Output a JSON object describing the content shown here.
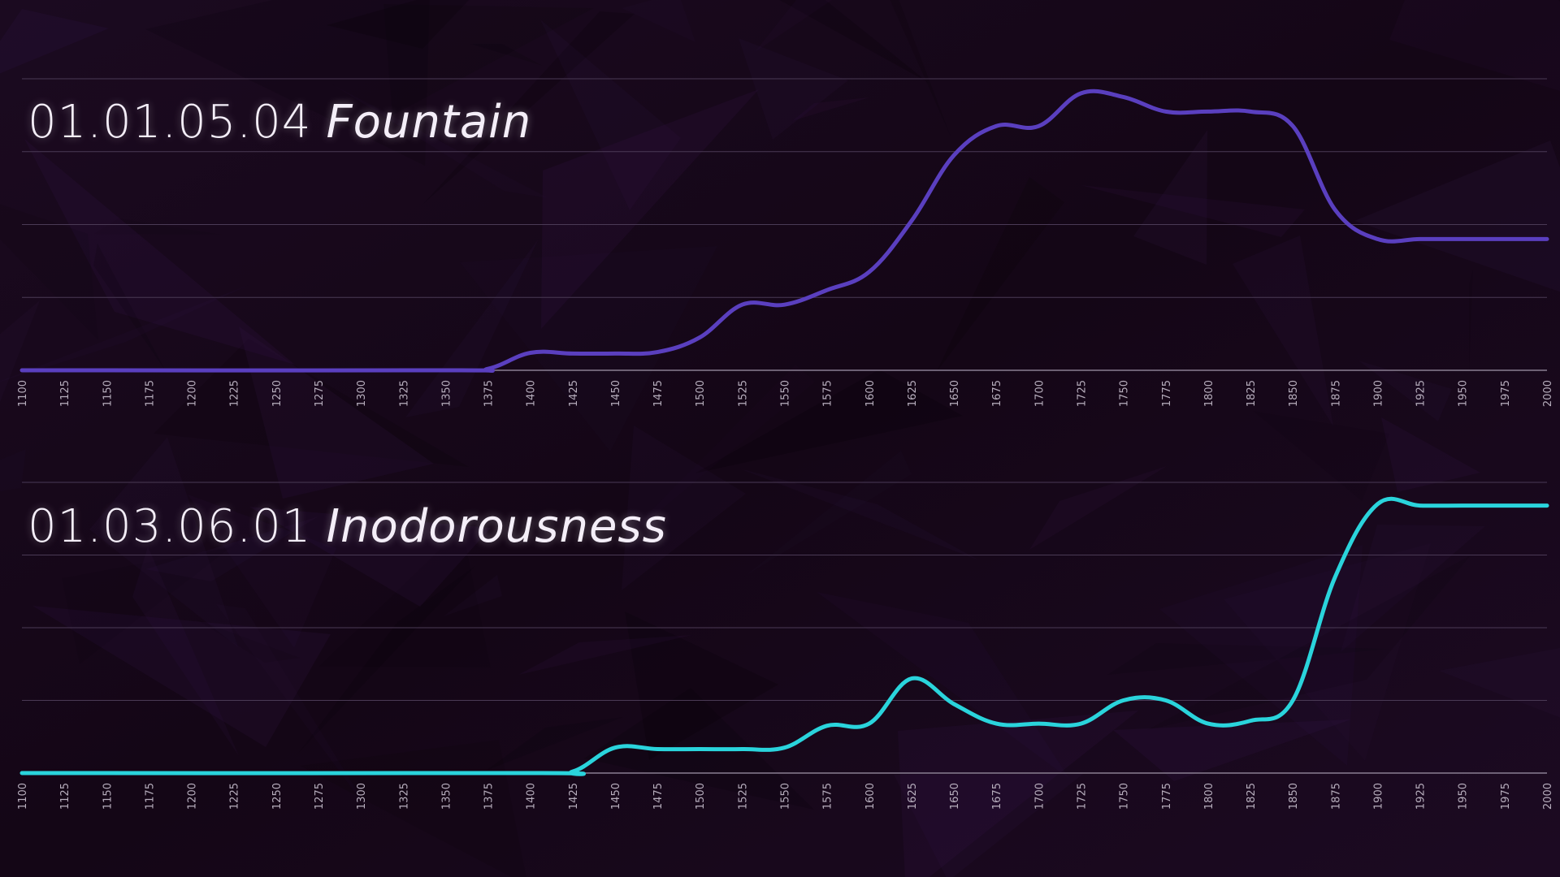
{
  "background_color": "#120512",
  "charts_text": [
    {
      "code": "01.01.05.04",
      "word": "Fountain"
    },
    {
      "code": "01.03.06.01",
      "word": "Inodorousness"
    }
  ],
  "chart_data": [
    {
      "type": "line",
      "title": "01.01.05.04 Fountain",
      "xlabel": "",
      "ylabel": "",
      "xlim": [
        1100,
        2000
      ],
      "ylim": [
        0,
        4
      ],
      "grid": true,
      "x_ticks": [
        1100,
        1125,
        1150,
        1175,
        1200,
        1225,
        1250,
        1275,
        1300,
        1325,
        1350,
        1375,
        1400,
        1425,
        1450,
        1475,
        1500,
        1525,
        1550,
        1575,
        1600,
        1625,
        1650,
        1675,
        1700,
        1725,
        1750,
        1775,
        1800,
        1825,
        1850,
        1875,
        1900,
        1925,
        1950,
        1975,
        2000
      ],
      "series": [
        {
          "color": "#5a3fbf",
          "x": [
            1100,
            1350,
            1375,
            1400,
            1425,
            1450,
            1475,
            1500,
            1525,
            1550,
            1575,
            1600,
            1625,
            1650,
            1675,
            1700,
            1725,
            1750,
            1775,
            1800,
            1825,
            1850,
            1875,
            1900,
            1925,
            1950,
            1975,
            2000
          ],
          "y": [
            0,
            0,
            0.02,
            0.24,
            0.23,
            0.23,
            0.25,
            0.45,
            0.9,
            0.9,
            1.1,
            1.35,
            2.05,
            2.95,
            3.35,
            3.35,
            3.8,
            3.75,
            3.55,
            3.55,
            3.55,
            3.35,
            2.2,
            1.8,
            1.8,
            1.8,
            1.8,
            1.8
          ]
        }
      ]
    },
    {
      "type": "line",
      "title": "01.03.06.01 Inodorousness",
      "xlabel": "",
      "ylabel": "",
      "xlim": [
        1100,
        2000
      ],
      "ylim": [
        0,
        4
      ],
      "grid": true,
      "x_ticks": [
        1100,
        1125,
        1150,
        1175,
        1200,
        1225,
        1250,
        1275,
        1300,
        1325,
        1350,
        1375,
        1400,
        1425,
        1450,
        1475,
        1500,
        1525,
        1550,
        1575,
        1600,
        1625,
        1650,
        1675,
        1700,
        1725,
        1750,
        1775,
        1800,
        1825,
        1850,
        1875,
        1900,
        1925,
        1950,
        1975,
        2000
      ],
      "series": [
        {
          "color": "#2ad4dc",
          "x": [
            1100,
            1400,
            1425,
            1450,
            1475,
            1500,
            1525,
            1550,
            1575,
            1600,
            1625,
            1650,
            1675,
            1700,
            1725,
            1750,
            1775,
            1800,
            1825,
            1850,
            1875,
            1900,
            1925,
            1950,
            1975,
            2000
          ],
          "y": [
            0,
            0,
            0.02,
            0.35,
            0.33,
            0.33,
            0.33,
            0.35,
            0.65,
            0.68,
            1.3,
            0.95,
            0.68,
            0.68,
            0.68,
            1.0,
            1.0,
            0.68,
            0.72,
            1.0,
            2.7,
            3.7,
            3.68,
            3.68,
            3.68,
            3.68
          ]
        }
      ]
    }
  ]
}
